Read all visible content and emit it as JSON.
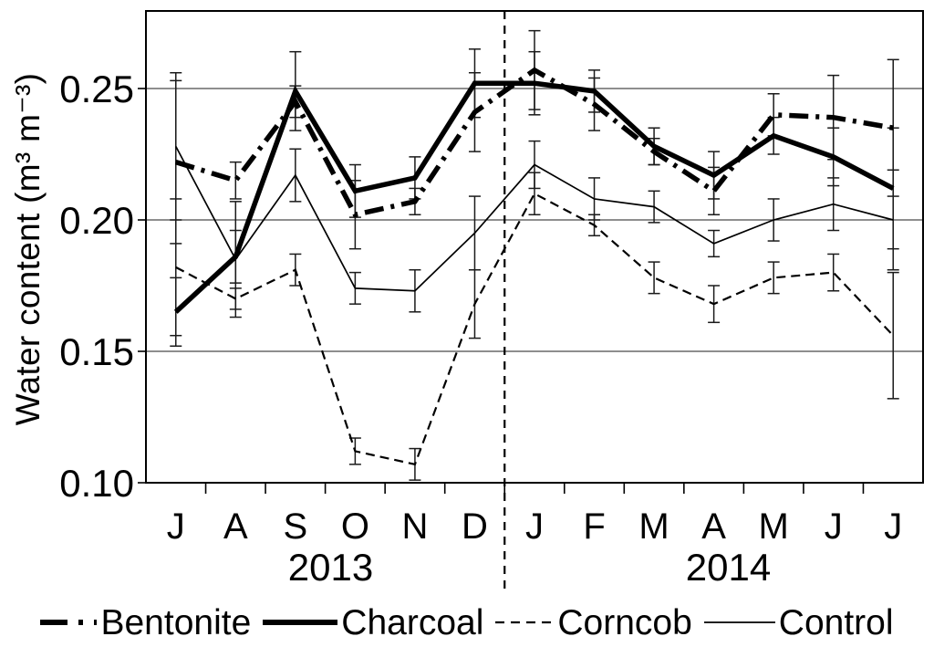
{
  "chart_data": {
    "type": "line",
    "title": "",
    "xlabel": "",
    "ylabel": "Water content (m³ m⁻³)",
    "x_categories": [
      "J",
      "A",
      "S",
      "O",
      "N",
      "D",
      "J",
      "F",
      "M",
      "A",
      "M",
      "J",
      "J"
    ],
    "x_groups": [
      {
        "label": "2013",
        "start_index": 0,
        "end_index": 5
      },
      {
        "label": "2014",
        "start_index": 6,
        "end_index": 12
      }
    ],
    "separator_after_index": 5,
    "ylim": [
      0.1,
      0.28
    ],
    "y_ticks": [
      {
        "label": "0.10",
        "value": 0.1
      },
      {
        "label": "0.15",
        "value": 0.15
      },
      {
        "label": "0.20",
        "value": 0.2
      },
      {
        "label": "0.25",
        "value": 0.25
      }
    ],
    "grid": "horizontal",
    "error_bars": true,
    "legend_position": "bottom",
    "series": [
      {
        "name": "Bentonite",
        "line_style": "dash-dot",
        "line_weight": "thick",
        "color": "#000000",
        "values": [
          0.222,
          0.215,
          0.245,
          0.202,
          0.207,
          0.241,
          0.257,
          0.244,
          0.226,
          0.211,
          0.24,
          0.239,
          0.235
        ],
        "errors": [
          0.031,
          0.007,
          0.006,
          0.013,
          0.005,
          0.015,
          0.015,
          0.01,
          0.005,
          0.009,
          0.008,
          0.016,
          0.026
        ]
      },
      {
        "name": "Charcoal",
        "line_style": "solid",
        "line_weight": "thick",
        "color": "#000000",
        "values": [
          0.165,
          0.186,
          0.249,
          0.211,
          0.216,
          0.252,
          0.252,
          0.249,
          0.228,
          0.217,
          0.232,
          0.224,
          0.212
        ],
        "errors": [
          0.013,
          0.01,
          0.015,
          0.01,
          0.008,
          0.013,
          0.012,
          0.008,
          0.007,
          0.009,
          0.007,
          0.011,
          0.023
        ]
      },
      {
        "name": "Corncob",
        "line_style": "dashed",
        "line_weight": "thin",
        "color": "#000000",
        "values": [
          0.182,
          0.17,
          0.181,
          0.112,
          0.107,
          0.168,
          0.21,
          0.198,
          0.178,
          0.168,
          0.178,
          0.18,
          0.156
        ],
        "errors": [
          0.026,
          0.004,
          0.006,
          0.005,
          0.006,
          0.013,
          0.008,
          0.004,
          0.006,
          0.007,
          0.006,
          0.007,
          0.024
        ]
      },
      {
        "name": "Control",
        "line_style": "solid",
        "line_weight": "thin",
        "color": "#000000",
        "values": [
          0.228,
          0.185,
          0.217,
          0.174,
          0.173,
          0.195,
          0.221,
          0.208,
          0.205,
          0.191,
          0.2,
          0.206,
          0.2
        ],
        "errors": [
          0.028,
          0.022,
          0.01,
          0.006,
          0.008,
          0.014,
          0.009,
          0.008,
          0.006,
          0.005,
          0.008,
          0.01,
          0.019
        ]
      }
    ]
  },
  "colors": {
    "foreground": "#000000",
    "background": "#ffffff",
    "gridline": "#4a4a4a",
    "error_bar": "#1a1a1a"
  }
}
